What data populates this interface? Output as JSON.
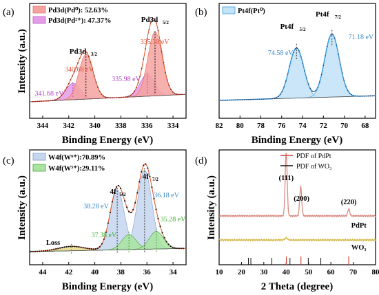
{
  "chart_data": [
    {
      "type": "line",
      "panel_label": "(a)",
      "xlabel": "Binding Energy (eV)",
      "ylabel": "Intensity (a.u.)",
      "xlim": [
        345,
        333
      ],
      "x_reversed": true,
      "xticks": [
        "344",
        "342",
        "340",
        "338",
        "336",
        "334"
      ],
      "legend": [
        "Pd3d(Pd⁰):   52.63%",
        "Pd3d(Pd²⁺):  47.37%"
      ],
      "legend_position": "top-left",
      "annotations": [
        "Pd3d",
        "3/2",
        "Pd3d",
        "5/2",
        "340.68 eV",
        "335.38 eV",
        "341.68 eV",
        "335.98 eV"
      ],
      "peaks": [
        {
          "center": 340.68,
          "species": "Pd0",
          "component": "3d3/2",
          "height": 0.6
        },
        {
          "center": 335.38,
          "species": "Pd0",
          "component": "3d5/2",
          "height": 0.86
        },
        {
          "center": 341.68,
          "species": "Pd2+",
          "component": "3d3/2",
          "height": 0.22
        },
        {
          "center": 335.98,
          "species": "Pd2+",
          "component": "3d5/2",
          "height": 0.3
        }
      ]
    },
    {
      "type": "line",
      "panel_label": "(b)",
      "xlabel": "Binding Energy (eV)",
      "xlim": [
        82,
        67
      ],
      "x_reversed": true,
      "xticks": [
        "82",
        "80",
        "78",
        "76",
        "74",
        "72",
        "70",
        "68"
      ],
      "legend": [
        "Pt4f(Pt⁰)"
      ],
      "legend_position": "top-left",
      "annotations": [
        "Pt4f",
        "5/2",
        "Pt4f",
        "7/2",
        "74.58 eV",
        "71.18 eV"
      ],
      "peaks": [
        {
          "center": 74.58,
          "component": "4f5/2",
          "height": 0.7
        },
        {
          "center": 71.18,
          "component": "4f7/2",
          "height": 0.88
        }
      ]
    },
    {
      "type": "line",
      "panel_label": "(c)",
      "xlabel": "Binding Energy (eV)",
      "ylabel": "Intensity (a.u.)",
      "xlim": [
        45,
        33
      ],
      "x_reversed": true,
      "xticks": [
        "44",
        "42",
        "40",
        "38",
        "36",
        "34"
      ],
      "legend": [
        "W4f(W⁶⁺):70.89%",
        "W4f(W⁵⁺):29.11%"
      ],
      "legend_position": "top-left",
      "annotations": [
        "4f",
        "5/2",
        "4f",
        "7/2",
        "38.28 eV",
        "36.18 eV",
        "37.38 eV",
        "35.28 eV",
        "Loss"
      ],
      "peaks": [
        {
          "center": 38.28,
          "species": "W6+",
          "component": "4f5/2",
          "height": 0.68
        },
        {
          "center": 36.18,
          "species": "W6+",
          "component": "4f7/2",
          "height": 0.9
        },
        {
          "center": 37.38,
          "species": "W5+",
          "component": "4f5/2",
          "height": 0.17
        },
        {
          "center": 35.28,
          "species": "W5+",
          "component": "4f7/2",
          "height": 0.2
        },
        {
          "center": 41.8,
          "component": "Loss",
          "height": 0.05
        }
      ]
    },
    {
      "type": "line",
      "panel_label": "(d)",
      "xlabel": "2 Theta (degree)",
      "ylabel": "Intensity (a.u.)",
      "xlim": [
        10,
        80
      ],
      "xticks": [
        "10",
        "20",
        "30",
        "40",
        "50",
        "60",
        "70",
        "80"
      ],
      "legend": [
        "PDF of PdPt",
        "PDF of WO₃"
      ],
      "legend_position": "top-right",
      "series_labels": [
        "PdPt",
        "WO₃"
      ],
      "reflections": [
        {
          "two_theta": 40.0,
          "label": "(111)"
        },
        {
          "two_theta": 46.5,
          "label": "(200)"
        },
        {
          "two_theta": 68.0,
          "label": "(220)"
        }
      ],
      "pdf_pdpt": [
        40.1,
        46.6,
        68.0
      ],
      "pdf_wo3": [
        23.1,
        24.2,
        33.6,
        41.7,
        49.9,
        55.5
      ]
    }
  ],
  "colors": {
    "pd0_fill": "#f4a3a0",
    "pd2_fill": "#e59be8",
    "pd_line": "#e6796f",
    "pt_fill": "#c4e3f7",
    "pt_line": "#3a9be0",
    "w6_fill": "#c5d6ee",
    "w5_fill": "#a8e4a0",
    "w_line": "#1d1d6b",
    "raw_points": "#8b1a1a",
    "fit_line": "#e05020",
    "pdpt_curve": "#d98b80",
    "wo3_curve": "#d7b84c",
    "ann_red": "#e0523c",
    "ann_purple": "#b147c8",
    "ann_blue": "#3a87c8",
    "ann_green": "#3cae2c"
  }
}
